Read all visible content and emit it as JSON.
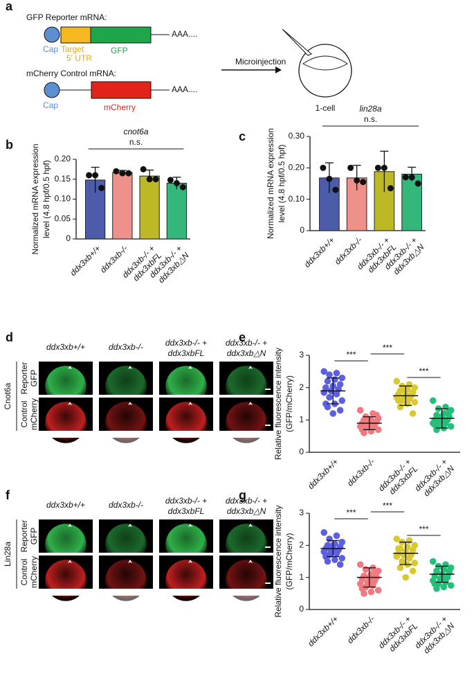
{
  "panel_labels": [
    "a",
    "b",
    "c",
    "d",
    "e",
    "f",
    "g"
  ],
  "diagram": {
    "reporter_title": "GFP Reporter mRNA:",
    "control_title": "mCherry Control mRNA:",
    "cap": "Cap",
    "target": "Target",
    "utr": "5' UTR",
    "gfp": "GFP",
    "tail": "AAA....",
    "mcherry": "mCherry",
    "arrow": "Microinjection",
    "embryo": "1-cell"
  },
  "images": [
    {
      "group": "Cnot6a",
      "columns": [
        [
          "ddx3xb+/+"
        ],
        [
          "ddx3xb-/-"
        ],
        [
          "ddx3xb-/- +",
          "ddx3xbFL"
        ],
        [
          "ddx3xb-/- +",
          "ddx3xb△N"
        ]
      ],
      "rows": [
        [
          "Reporter",
          "GFP"
        ],
        [
          "Control",
          "mCherry"
        ]
      ]
    },
    {
      "group": "Lin28a",
      "columns": [
        [
          "ddx3xb+/+"
        ],
        [
          "ddx3xb-/-"
        ],
        [
          "ddx3xb-/- +",
          "ddx3xbFL"
        ],
        [
          "ddx3xb-/- +",
          "ddx3xb△N"
        ]
      ],
      "rows": [
        [
          "Reporter",
          "GFP"
        ],
        [
          "Control",
          "mCherry"
        ]
      ]
    }
  ],
  "chart_data": [
    {
      "type": "bar",
      "title": "cnot6a",
      "annotations": [
        "n.s."
      ],
      "ylabel": [
        "Normalized mRNA expression",
        "level (4.8 hpf/0.5 hpf)"
      ],
      "categories": [
        [
          "ddx3xb+/+"
        ],
        [
          "ddx3xb-/-"
        ],
        [
          "ddx3xb-/- +",
          "ddx3xbFL"
        ],
        [
          "ddx3xb-/- +",
          "ddx3xb△N"
        ]
      ],
      "values": [
        0.148,
        0.167,
        0.158,
        0.14
      ],
      "errors": [
        0.032,
        0.005,
        0.015,
        0.015
      ],
      "points": [
        [
          0.16,
          0.16,
          0.128
        ],
        [
          0.17,
          0.165,
          0.165
        ],
        [
          0.175,
          0.15,
          0.15
        ],
        [
          0.148,
          0.14,
          0.13
        ]
      ],
      "colors": [
        "#4d5ca8",
        "#ef918b",
        "#bcb826",
        "#33b77a"
      ],
      "ylim": [
        0,
        0.2
      ],
      "yticks": [
        0,
        0.05,
        {
          "value": 0.1,
          "label": "0.10"
        },
        0.15,
        {
          "value": 0.2,
          "label": "0.20"
        }
      ]
    },
    {
      "type": "bar",
      "title": "lin28a",
      "annotations": [
        "n.s."
      ],
      "ylabel": [
        "Normalized mRNA expression",
        "level (4.8 hpf/0.5 hpf)"
      ],
      "categories": [
        [
          "ddx3xb+/+"
        ],
        [
          "ddx3xb-/-"
        ],
        [
          "ddx3xb-/- +",
          "ddx3xbFL"
        ],
        [
          "ddx3xb-/- +",
          "ddx3xb△N"
        ]
      ],
      "values": [
        0.168,
        0.168,
        0.188,
        0.18
      ],
      "errors": [
        0.048,
        0.04,
        0.065,
        0.022
      ],
      "points": [
        [
          0.2,
          0.165,
          0.13
        ],
        [
          0.2,
          0.16,
          0.155
        ],
        [
          0.2,
          0.2,
          0.135
        ],
        [
          0.17,
          0.17,
          0.15
        ]
      ],
      "colors": [
        "#4d5ca8",
        "#ef918b",
        "#bcb826",
        "#33b77a"
      ],
      "ylim": [
        0,
        0.3
      ],
      "yticks": [
        0,
        {
          "value": 0.1,
          "label": "0.10"
        },
        {
          "value": 0.2,
          "label": "0.20"
        },
        {
          "value": 0.3,
          "label": "0.30"
        }
      ]
    },
    {
      "type": "dotplot",
      "annotations": [
        "***",
        "***",
        "***"
      ],
      "ylabel": [
        "Relative fluorescence intensity",
        "(GFP/mCherry)"
      ],
      "categories": [
        [
          "ddx3xb+/+"
        ],
        [
          "ddx3xb-/-"
        ],
        [
          "ddx3xb-/- +",
          "ddx3xbFL"
        ],
        [
          "ddx3xb-/- +",
          "ddx3xb△N"
        ]
      ],
      "values": [
        1.9,
        0.9,
        1.75,
        1.05
      ],
      "errors": [
        0.4,
        0.2,
        0.3,
        0.3
      ],
      "points": [
        [
          2.5,
          2.45,
          2.4,
          2.3,
          2.25,
          2.2,
          2.1,
          2.05,
          2.0,
          1.95,
          1.9,
          1.85,
          1.8,
          1.7,
          1.6,
          1.5,
          1.4,
          1.3,
          1.2,
          1.5
        ],
        [
          1.3,
          1.2,
          1.1,
          1.05,
          1.0,
          1.0,
          0.95,
          0.9,
          0.9,
          0.85,
          0.85,
          0.8,
          0.8,
          0.75,
          0.7,
          0.65,
          0.6,
          1.15,
          0.95,
          0.7
        ],
        [
          2.2,
          2.1,
          2.05,
          2.0,
          1.95,
          1.9,
          1.85,
          1.85,
          1.8,
          1.75,
          1.7,
          1.7,
          1.65,
          1.6,
          1.55,
          1.5,
          1.4,
          1.2,
          1.9,
          1.6
        ],
        [
          1.6,
          1.4,
          1.35,
          1.3,
          1.2,
          1.15,
          1.1,
          1.05,
          1.0,
          1.0,
          0.95,
          0.9,
          0.9,
          0.85,
          0.8,
          0.75,
          0.7,
          1.25,
          1.1,
          0.85
        ]
      ],
      "colors": [
        "#5b5fe0",
        "#f07a80",
        "#d8c930",
        "#22c07a"
      ],
      "ylim": [
        0,
        3
      ],
      "yticks": [
        0,
        1,
        2,
        3
      ]
    },
    {
      "type": "dotplot",
      "annotations": [
        "***",
        "***",
        "***"
      ],
      "ylabel": [
        "Relative fluorescence intensity",
        "(GFP/mCherry)"
      ],
      "categories": [
        [
          "ddx3xb+/+"
        ],
        [
          "ddx3xb-/-"
        ],
        [
          "ddx3xb-/- +",
          "ddx3xbFL"
        ],
        [
          "ddx3xb-/- +",
          "ddx3xb△N"
        ]
      ],
      "values": [
        1.9,
        1.0,
        1.75,
        1.1
      ],
      "errors": [
        0.25,
        0.3,
        0.35,
        0.25
      ],
      "points": [
        [
          2.4,
          2.3,
          2.2,
          2.1,
          2.05,
          2.0,
          1.95,
          1.9,
          1.9,
          1.85,
          1.8,
          1.8,
          1.75,
          1.7,
          1.6,
          1.55,
          1.5,
          1.4,
          2.0,
          1.65
        ],
        [
          1.4,
          1.3,
          1.25,
          1.2,
          1.1,
          1.05,
          1.0,
          1.0,
          0.95,
          0.9,
          0.85,
          0.8,
          0.75,
          0.7,
          0.6,
          0.55,
          0.5,
          1.15,
          0.9,
          0.65
        ],
        [
          2.2,
          2.15,
          2.1,
          2.0,
          1.95,
          1.9,
          1.85,
          1.8,
          1.75,
          1.7,
          1.7,
          1.65,
          1.6,
          1.5,
          1.45,
          1.4,
          1.3,
          1.2,
          1.0,
          1.9
        ],
        [
          1.5,
          1.4,
          1.35,
          1.3,
          1.25,
          1.2,
          1.15,
          1.1,
          1.05,
          1.0,
          0.95,
          0.9,
          0.85,
          0.8,
          0.75,
          0.7,
          0.65,
          1.2,
          1.0,
          0.8
        ]
      ],
      "colors": [
        "#5b5fe0",
        "#f07a80",
        "#d8c930",
        "#22c07a"
      ],
      "ylim": [
        0,
        3
      ],
      "yticks": [
        0,
        1,
        2,
        3
      ]
    }
  ]
}
